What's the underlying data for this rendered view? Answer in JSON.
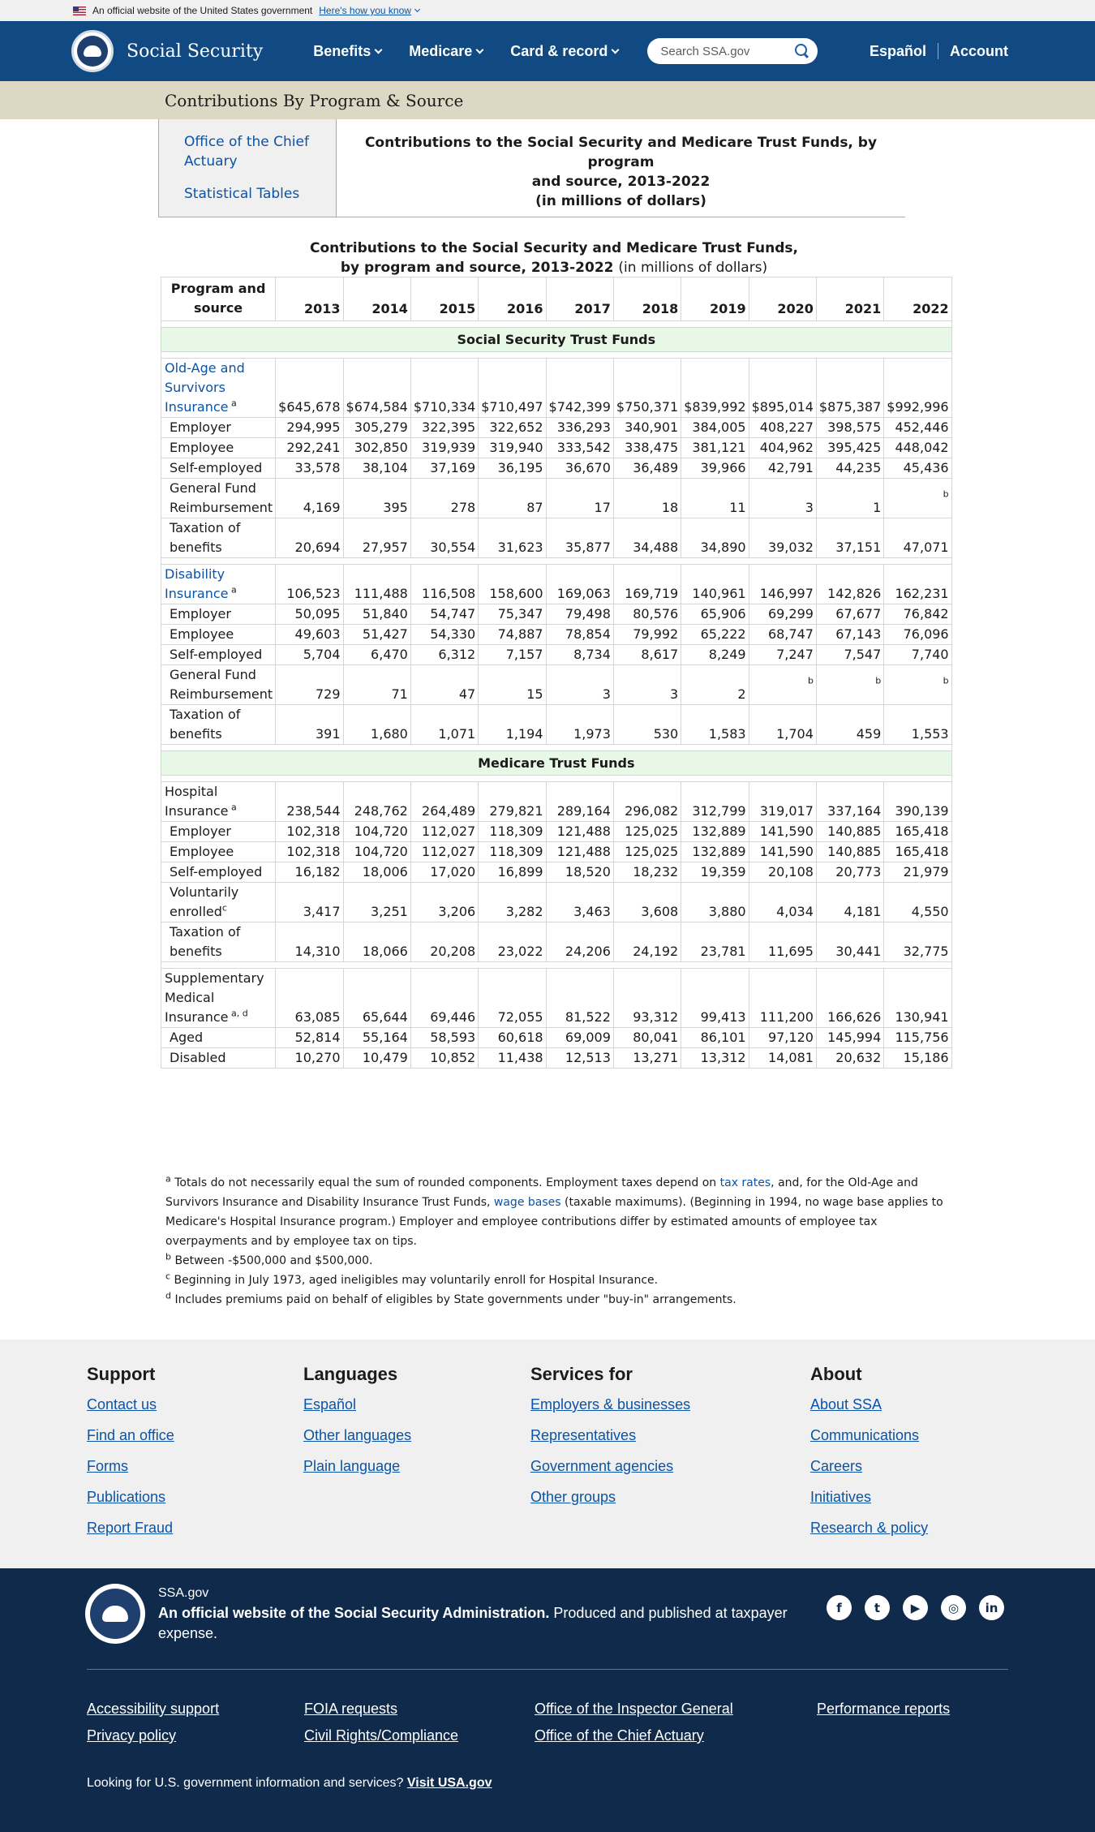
{
  "gov_banner": {
    "text": "An official website of the United States government",
    "link": "Here's how you know"
  },
  "header": {
    "brand": "Social Security",
    "nav": [
      "Benefits",
      "Medicare",
      "Card & record"
    ],
    "search_placeholder": "Search SSA.gov",
    "espanol": "Español",
    "account": "Account"
  },
  "page_title": "Contributions By Program & Source",
  "sidenav": [
    "Office of the Chief Actuary",
    "Statistical Tables"
  ],
  "heading": {
    "line1": "Contributions to the Social Security and Medicare Trust Funds, by program",
    "line2": "and source, 2013-2022",
    "line3": "(in millions of dollars)"
  },
  "caption": {
    "line1": "Contributions to the Social Security and Medicare Trust Funds,",
    "line2": "by program and source, 2013-2022",
    "units": "(in millions of dollars)"
  },
  "table": {
    "header_label": "Program and source",
    "years": [
      "2013",
      "2014",
      "2015",
      "2016",
      "2017",
      "2018",
      "2019",
      "2020",
      "2021",
      "2022"
    ],
    "sections": [
      {
        "title": "Social Security Trust Funds",
        "groups": [
          {
            "name": "Old-Age and Survivors Insurance",
            "note": "a",
            "link": true,
            "values": [
              "$645,678",
              "$674,584",
              "$710,334",
              "$710,497",
              "$742,399",
              "$750,371",
              "$839,992",
              "$895,014",
              "$875,387",
              "$992,996"
            ],
            "rows": [
              {
                "label": "Employer",
                "values": [
                  "294,995",
                  "305,279",
                  "322,395",
                  "322,652",
                  "336,293",
                  "340,901",
                  "384,005",
                  "408,227",
                  "398,575",
                  "452,446"
                ]
              },
              {
                "label": "Employee",
                "values": [
                  "292,241",
                  "302,850",
                  "319,939",
                  "319,940",
                  "333,542",
                  "338,475",
                  "381,121",
                  "404,962",
                  "395,425",
                  "448,042"
                ]
              },
              {
                "label": "Self-employed",
                "values": [
                  "33,578",
                  "38,104",
                  "37,169",
                  "36,195",
                  "36,670",
                  "36,489",
                  "39,966",
                  "42,791",
                  "44,235",
                  "45,436"
                ]
              },
              {
                "label": "General Fund Reimbursement",
                "values": [
                  "4,169",
                  "395",
                  "278",
                  "87",
                  "17",
                  "18",
                  "11",
                  "3",
                  "1",
                  "b"
                ]
              },
              {
                "label": "Taxation of benefits",
                "values": [
                  "20,694",
                  "27,957",
                  "30,554",
                  "31,623",
                  "35,877",
                  "34,488",
                  "34,890",
                  "39,032",
                  "37,151",
                  "47,071"
                ]
              }
            ]
          },
          {
            "name": "Disability Insurance",
            "note": "a",
            "link": true,
            "values": [
              "106,523",
              "111,488",
              "116,508",
              "158,600",
              "169,063",
              "169,719",
              "140,961",
              "146,997",
              "142,826",
              "162,231"
            ],
            "rows": [
              {
                "label": "Employer",
                "values": [
                  "50,095",
                  "51,840",
                  "54,747",
                  "75,347",
                  "79,498",
                  "80,576",
                  "65,906",
                  "69,299",
                  "67,677",
                  "76,842"
                ]
              },
              {
                "label": "Employee",
                "values": [
                  "49,603",
                  "51,427",
                  "54,330",
                  "74,887",
                  "78,854",
                  "79,992",
                  "65,222",
                  "68,747",
                  "67,143",
                  "76,096"
                ]
              },
              {
                "label": "Self-employed",
                "values": [
                  "5,704",
                  "6,470",
                  "6,312",
                  "7,157",
                  "8,734",
                  "8,617",
                  "8,249",
                  "7,247",
                  "7,547",
                  "7,740"
                ]
              },
              {
                "label": "General Fund Reimbursement",
                "values": [
                  "729",
                  "71",
                  "47",
                  "15",
                  "3",
                  "3",
                  "2",
                  "b",
                  "b",
                  "b"
                ]
              },
              {
                "label": "Taxation of benefits",
                "values": [
                  "391",
                  "1,680",
                  "1,071",
                  "1,194",
                  "1,973",
                  "530",
                  "1,583",
                  "1,704",
                  "459",
                  "1,553"
                ]
              }
            ]
          }
        ]
      },
      {
        "title": "Medicare Trust Funds",
        "groups": [
          {
            "name": "Hospital Insurance",
            "note": "a",
            "link": false,
            "values": [
              "238,544",
              "248,762",
              "264,489",
              "279,821",
              "289,164",
              "296,082",
              "312,799",
              "319,017",
              "337,164",
              "390,139"
            ],
            "rows": [
              {
                "label": "Employer",
                "values": [
                  "102,318",
                  "104,720",
                  "112,027",
                  "118,309",
                  "121,488",
                  "125,025",
                  "132,889",
                  "141,590",
                  "140,885",
                  "165,418"
                ]
              },
              {
                "label": "Employee",
                "values": [
                  "102,318",
                  "104,720",
                  "112,027",
                  "118,309",
                  "121,488",
                  "125,025",
                  "132,889",
                  "141,590",
                  "140,885",
                  "165,418"
                ]
              },
              {
                "label": "Self-employed",
                "values": [
                  "16,182",
                  "18,006",
                  "17,020",
                  "16,899",
                  "18,520",
                  "18,232",
                  "19,359",
                  "20,108",
                  "20,773",
                  "21,979"
                ]
              },
              {
                "label": "Voluntarily enrolled",
                "note": "c",
                "values": [
                  "3,417",
                  "3,251",
                  "3,206",
                  "3,282",
                  "3,463",
                  "3,608",
                  "3,880",
                  "4,034",
                  "4,181",
                  "4,550"
                ]
              },
              {
                "label": "Taxation of benefits",
                "values": [
                  "14,310",
                  "18,066",
                  "20,208",
                  "23,022",
                  "24,206",
                  "24,192",
                  "23,781",
                  "11,695",
                  "30,441",
                  "32,775"
                ]
              }
            ]
          },
          {
            "name": "Supplementary Medical Insurance",
            "note": "a, d",
            "link": false,
            "values": [
              "63,085",
              "65,644",
              "69,446",
              "72,055",
              "81,522",
              "93,312",
              "99,413",
              "111,200",
              "166,626",
              "130,941"
            ],
            "rows": [
              {
                "label": "Aged",
                "values": [
                  "52,814",
                  "55,164",
                  "58,593",
                  "60,618",
                  "69,009",
                  "80,041",
                  "86,101",
                  "97,120",
                  "145,994",
                  "115,756"
                ]
              },
              {
                "label": "Disabled",
                "values": [
                  "10,270",
                  "10,479",
                  "10,852",
                  "11,438",
                  "12,513",
                  "13,271",
                  "13,312",
                  "14,081",
                  "20,632",
                  "15,186"
                ]
              }
            ]
          }
        ]
      }
    ]
  },
  "footnotes": {
    "a_pre": "Totals do not necessarily equal the sum of rounded components. Employment taxes depend on ",
    "a_link1": "tax rates",
    "a_mid": ", and, for the Old-Age and Survivors Insurance and Disability Insurance Trust Funds, ",
    "a_link2": "wage bases",
    "a_post": " (taxable maximums). (Beginning in 1994, no wage base applies to Medicare's Hospital Insurance program.) Employer and employee contributions differ by estimated amounts of employee tax overpayments and by employee tax on tips.",
    "b": "Between -$500,000 and $500,000.",
    "c": "Beginning in July 1973, aged ineligibles may voluntarily enroll for Hospital Insurance.",
    "d": "Includes premiums paid on behalf of eligibles by State governments under \"buy-in\" arrangements."
  },
  "footer": {
    "columns": [
      {
        "title": "Support",
        "links": [
          "Contact us",
          "Find an office",
          "Forms",
          "Publications",
          "Report Fraud"
        ]
      },
      {
        "title": "Languages",
        "links": [
          "Español",
          "Other languages",
          "Plain language"
        ]
      },
      {
        "title": "Services for",
        "links": [
          "Employers & businesses",
          "Representatives",
          "Government agencies",
          "Other groups"
        ]
      },
      {
        "title": "About",
        "links": [
          "About SSA",
          "Communications",
          "Careers",
          "Initiatives",
          "Research & policy"
        ]
      }
    ],
    "site": "SSA.gov",
    "official_bold": "An official website of the Social Security Administration.",
    "official_rest": " Produced and published at taxpayer expense.",
    "socials": [
      "facebook",
      "twitter",
      "youtube",
      "instagram",
      "linkedin"
    ],
    "bottom_links": [
      "Accessibility support",
      "FOIA requests",
      "Office of the Inspector General",
      "Performance reports",
      "Privacy policy",
      "Civil Rights/Compliance",
      "Office of the Chief Actuary"
    ],
    "usa_text": "Looking for U.S. government information and services?",
    "usa_link": "Visit USA.gov"
  }
}
